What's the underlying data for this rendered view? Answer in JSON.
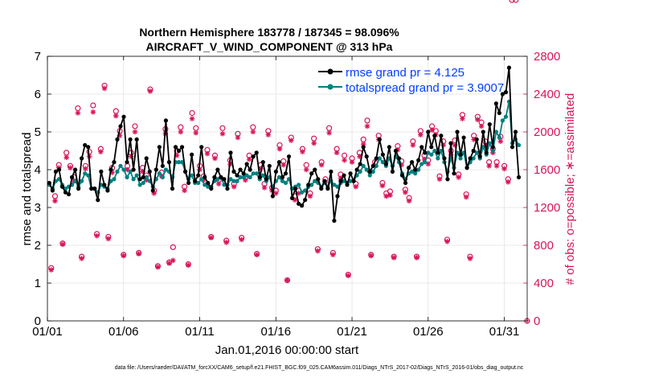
{
  "colors": {
    "rmse": "#000000",
    "spread": "#008080",
    "obs": "#d6155a",
    "legend_text": "#0040ff"
  },
  "chart_data": {
    "type": "line",
    "title": "Northern Hemisphere 183778 / 187345 = 98.096%",
    "subtitle": "AIRCRAFT_V_WIND_COMPONENT @ 313 hPa",
    "xlabel": "Jan.01,2016 00:00:00 start",
    "ylabel": "rmse and totalspread",
    "y2label": "# of obs: o=possible; ∗=assimilated",
    "footnote": "data file: /Users/raeder/DAI/ATM_forcXX/CAM6_setup/f.e21.FHIST_BGC.f09_025.CAM6assim.011/Diags_NTrS_2017-02/Diags_NTrS_2016-01/obs_diag_output.nc",
    "xlim": [
      1,
      32.5
    ],
    "ylim": [
      0,
      7
    ],
    "y2lim": [
      0,
      2800
    ],
    "xticks": [
      1,
      6,
      11,
      16,
      21,
      26,
      31
    ],
    "xtick_labels": [
      "01/01",
      "01/06",
      "01/11",
      "01/16",
      "01/21",
      "01/26",
      "01/31"
    ],
    "yticks": [
      "0",
      "1",
      "2",
      "3",
      "4",
      "5",
      "6",
      "7"
    ],
    "y2ticks": [
      "0",
      "400",
      "800",
      "1200",
      "1600",
      "2000",
      "2400",
      "2800"
    ],
    "legend_position": "top-right",
    "series": [
      {
        "name": "rmse grand pr = 4.125",
        "axis": "left",
        "values": [
          3.65,
          3.45,
          3.95,
          4.0,
          3.55,
          3.4,
          3.35,
          3.8,
          4.0,
          3.5,
          4.3,
          4.65,
          4.6,
          3.5,
          3.5,
          3.2,
          3.95,
          3.6,
          3.45,
          4.0,
          4.2,
          4.8,
          5.15,
          5.4,
          4.2,
          4.8,
          4.0,
          4.8,
          3.75,
          3.8,
          4.3,
          3.95,
          3.45,
          4.0,
          4.6,
          4.1,
          5.3,
          4.2,
          3.5,
          4.6,
          4.5,
          4.6,
          3.95,
          3.65,
          4.4,
          3.7,
          3.85,
          4.6,
          3.8,
          3.65,
          3.5,
          3.8,
          4.0,
          3.8,
          3.75,
          3.5,
          4.45,
          3.95,
          3.85,
          4.0,
          3.9,
          4.15,
          4.0,
          4.35,
          4.45,
          3.8,
          4.2,
          3.75,
          4.1,
          3.3,
          3.95,
          4.2,
          3.8,
          3.9,
          4.35,
          3.25,
          3.5,
          3.1,
          3.05,
          3.2,
          3.6,
          3.9,
          4.0,
          3.75,
          3.5,
          3.7,
          3.5,
          3.95,
          2.65,
          3.3,
          3.7,
          3.85,
          3.6,
          3.9,
          3.7,
          4.0,
          4.15,
          4.6,
          4.35,
          3.95,
          4.1,
          4.3,
          4.8,
          4.4,
          4.15,
          4.6,
          3.95,
          4.5,
          4.3,
          3.85,
          3.65,
          4.05,
          4.2,
          4.0,
          4.25,
          4.6,
          4.45,
          5.0,
          4.6,
          4.9,
          4.45,
          4.9,
          4.3,
          3.75,
          4.7,
          3.9,
          5.0,
          4.4,
          4.85,
          4.05,
          4.3,
          4.5,
          4.8,
          4.35,
          5.0,
          4.45,
          5.2,
          4.6,
          5.75,
          5.5,
          6.0,
          6.05,
          6.7,
          4.6,
          5.0,
          3.8
        ]
      },
      {
        "name": "totalspread grand pr = 3.9007",
        "axis": "left",
        "values": [
          3.6,
          3.5,
          3.7,
          3.75,
          3.6,
          3.5,
          3.55,
          3.6,
          3.7,
          3.55,
          3.7,
          3.9,
          3.85,
          3.5,
          3.5,
          3.4,
          3.6,
          3.55,
          3.5,
          3.7,
          3.75,
          3.95,
          4.1,
          4.0,
          3.8,
          3.95,
          3.75,
          3.85,
          3.6,
          3.65,
          3.8,
          3.7,
          3.55,
          3.75,
          3.9,
          3.8,
          4.0,
          3.95,
          3.8,
          4.2,
          4.2,
          4.2,
          3.95,
          3.75,
          3.85,
          3.65,
          3.65,
          3.75,
          3.6,
          3.55,
          3.55,
          3.7,
          3.75,
          3.8,
          3.6,
          3.6,
          3.75,
          3.7,
          3.7,
          3.8,
          3.8,
          3.85,
          3.8,
          3.9,
          3.9,
          3.75,
          3.85,
          3.7,
          3.8,
          3.55,
          3.7,
          3.8,
          3.7,
          3.65,
          3.75,
          3.5,
          3.55,
          3.6,
          3.4,
          3.45,
          3.55,
          3.6,
          3.7,
          3.65,
          3.55,
          3.65,
          3.55,
          3.7,
          3.6,
          3.55,
          3.65,
          3.7,
          3.65,
          3.7,
          3.7,
          3.85,
          3.95,
          4.1,
          4.0,
          3.85,
          3.95,
          4.1,
          4.3,
          4.2,
          4.1,
          4.3,
          4.1,
          4.35,
          4.2,
          3.9,
          3.75,
          3.9,
          3.95,
          3.9,
          4.0,
          4.15,
          4.2,
          4.45,
          4.4,
          4.5,
          4.3,
          4.5,
          4.2,
          3.95,
          4.3,
          4.05,
          4.45,
          4.3,
          4.45,
          4.05,
          4.2,
          4.3,
          4.45,
          4.3,
          4.6,
          4.4,
          4.7,
          4.5,
          5.0,
          4.85,
          5.3,
          5.4,
          5.8,
          4.7,
          4.8,
          4.65
        ]
      }
    ],
    "obs": {
      "axis": "right",
      "x": [
        1.25,
        1.5,
        1.75,
        2.0,
        2.25,
        2.5,
        2.75,
        3.0,
        3.25,
        3.5,
        3.75,
        4.0,
        4.25,
        4.5,
        4.75,
        5.0,
        5.25,
        5.5,
        5.75,
        6.0,
        6.25,
        6.5,
        6.75,
        7.0,
        7.25,
        7.5,
        7.75,
        8.0,
        8.25,
        8.5,
        8.75,
        9.0,
        9.25,
        9.5,
        9.75,
        10.0,
        10.25,
        10.5,
        10.75,
        11.0,
        11.25,
        11.5,
        11.75,
        12.0,
        12.25,
        12.5,
        12.75,
        13.0,
        13.25,
        13.5,
        13.75,
        14.0,
        14.25,
        14.5,
        14.75,
        15.0,
        15.25,
        15.5,
        15.75,
        16.0,
        16.25,
        16.5,
        16.75,
        17.0,
        17.25,
        17.5,
        17.75,
        18.0,
        18.25,
        18.5,
        18.75,
        19.0,
        19.25,
        19.5,
        19.75,
        20.0,
        20.25,
        20.5,
        20.75,
        21.0,
        21.25,
        21.5,
        21.75,
        22.0,
        22.25,
        22.5,
        22.75,
        23.0,
        23.25,
        23.5,
        23.75,
        24.0,
        24.25,
        24.5,
        24.75,
        25.0,
        25.25,
        25.5,
        25.75,
        26.0,
        26.25,
        26.5,
        26.75,
        27.0,
        27.25,
        27.5,
        27.75,
        28.0,
        28.25,
        28.5,
        28.75,
        29.0,
        29.25,
        29.5,
        29.75,
        30.0,
        30.25,
        30.5,
        30.75,
        31.0,
        31.25,
        31.5,
        31.75
      ],
      "possible": [
        560,
        1320,
        1650,
        820,
        1780,
        1640,
        1520,
        2250,
        680,
        1640,
        1790,
        2280,
        920,
        1820,
        2490,
        890,
        1620,
        2220,
        2010,
        700,
        1640,
        1780,
        2060,
        720,
        1620,
        1540,
        2450,
        1380,
        580,
        1570,
        2030,
        620,
        780,
        1800,
        2050,
        1420,
        600,
        2200,
        2040,
        1640,
        1530,
        1810,
        890,
        1750,
        1490,
        2040,
        850,
        1700,
        1450,
        1980,
        880,
        1520,
        1750,
        2050,
        710,
        1650,
        1450,
        2010,
        1410,
        1380,
        1860,
        1690,
        430,
        1940,
        1320,
        1380,
        1820,
        1650,
        1350,
        1930,
        760,
        1680,
        1500,
        2040,
        720,
        1820,
        1550,
        1750,
        490,
        1720,
        1450,
        1780,
        1920,
        2120,
        700,
        1680,
        1960,
        1460,
        1350,
        1370,
        680,
        1850,
        1690,
        1390,
        1300,
        1900,
        680,
        2010,
        1750,
        1700,
        2060,
        2010,
        1530,
        1900,
        860,
        1800,
        1910,
        1550,
        2180,
        1340,
        680,
        1960,
        2160,
        2100,
        1900,
        1680,
        1820,
        1680,
        1950,
        1640,
        1500
      ],
      "assimilated": [
        540,
        1270,
        1620,
        810,
        1730,
        1620,
        1480,
        2200,
        660,
        1610,
        1740,
        2210,
        900,
        1790,
        2460,
        870,
        1570,
        2170,
        1960,
        690,
        1600,
        1740,
        2000,
        710,
        1580,
        1490,
        2430,
        1350,
        570,
        1530,
        1980,
        610,
        640,
        1750,
        2000,
        1380,
        590,
        2140,
        1990,
        1600,
        1490,
        1770,
        880,
        1720,
        1450,
        1980,
        830,
        1660,
        1420,
        1940,
        860,
        1490,
        1710,
        2000,
        700,
        1610,
        1410,
        1970,
        1380,
        1350,
        1820,
        1650,
        430,
        1910,
        1280,
        1350,
        1790,
        1600,
        1320,
        1880,
        740,
        1650,
        1470,
        1990,
        700,
        1780,
        1510,
        1700,
        480,
        1680,
        1420,
        1740,
        1870,
        2060,
        690,
        1640,
        1920,
        1430,
        1320,
        1330,
        670,
        1810,
        1650,
        1360,
        1270,
        1860,
        670,
        1970,
        1710,
        1660,
        2020,
        1970,
        1500,
        1860,
        840,
        1760,
        1860,
        1520,
        2140,
        1310,
        660,
        1920,
        2130,
        2060,
        1860,
        1640,
        1780,
        1640,
        1900,
        1610,
        1470
      ]
    },
    "end_marker": {
      "x": 32.5,
      "count": 0
    }
  }
}
